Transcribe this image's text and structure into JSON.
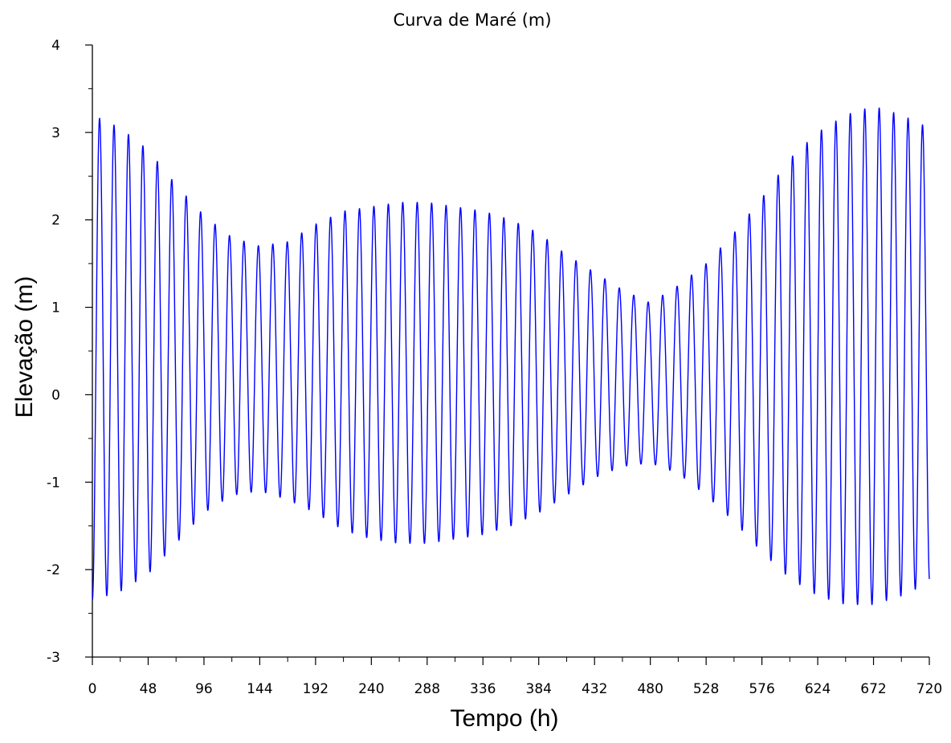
{
  "chart_data": {
    "type": "line",
    "title": "Curva de Maré (m)",
    "xlabel": "Tempo (h)",
    "ylabel": "Elevação (m)",
    "xlim": [
      0,
      720
    ],
    "ylim": [
      -3,
      4
    ],
    "xticks": [
      0,
      48,
      96,
      144,
      192,
      240,
      288,
      336,
      384,
      432,
      480,
      528,
      576,
      624,
      672,
      720
    ],
    "xtick_labels": [
      "0",
      "48",
      "96",
      "144",
      "192",
      "240",
      "288",
      "336",
      "384",
      "432",
      "480",
      "528",
      "576",
      "624",
      "672",
      "720"
    ],
    "yticks": [
      -3,
      -2,
      -1,
      0,
      1,
      2,
      3,
      4
    ],
    "ytick_labels": [
      "-3",
      "-2",
      "-1",
      "0",
      "1",
      "2",
      "3",
      "4"
    ],
    "grid": false,
    "series": [
      {
        "color": "#0000ff",
        "period_h": 12.42,
        "envelope_t": [
          0,
          24,
          48,
          72,
          96,
          120,
          144,
          168,
          192,
          216,
          240,
          264,
          288,
          312,
          336,
          360,
          384,
          408,
          432,
          456,
          480,
          504,
          528,
          552,
          576,
          600,
          624,
          648,
          672,
          696,
          720
        ],
        "envelope_max": [
          3.2,
          3.05,
          2.8,
          2.4,
          2.05,
          1.8,
          1.7,
          1.75,
          1.95,
          2.1,
          2.15,
          2.2,
          2.2,
          2.15,
          2.1,
          2.0,
          1.85,
          1.6,
          1.4,
          1.2,
          1.05,
          1.25,
          1.5,
          1.85,
          2.25,
          2.7,
          3.0,
          3.2,
          3.3,
          3.2,
          3.05
        ],
        "envelope_min": [
          -2.35,
          -2.25,
          -2.05,
          -1.7,
          -1.35,
          -1.15,
          -1.1,
          -1.2,
          -1.35,
          -1.55,
          -1.65,
          -1.7,
          -1.7,
          -1.65,
          -1.6,
          -1.5,
          -1.35,
          -1.15,
          -0.95,
          -0.82,
          -0.78,
          -0.9,
          -1.15,
          -1.45,
          -1.8,
          -2.1,
          -2.3,
          -2.4,
          -2.4,
          -2.3,
          -2.15
        ]
      }
    ]
  }
}
